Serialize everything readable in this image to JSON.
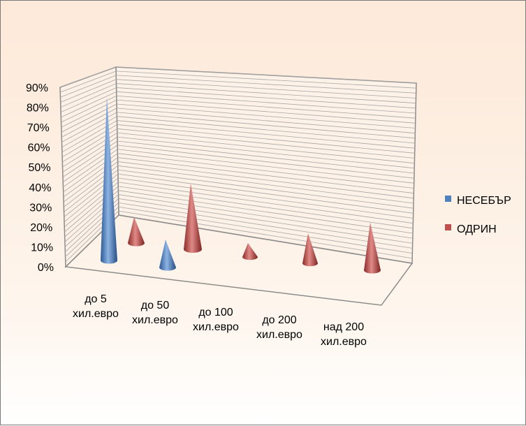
{
  "chart_data": {
    "type": "bar",
    "shape": "cone-3d",
    "title": "",
    "xlabel": "",
    "ylabel": "",
    "ylim": [
      0,
      90
    ],
    "yticks": [
      "0%",
      "10%",
      "20%",
      "30%",
      "40%",
      "50%",
      "60%",
      "70%",
      "80%",
      "90%"
    ],
    "grid": true,
    "legend_position": "right",
    "categories": [
      [
        "до 5",
        "хил.евро"
      ],
      [
        "до  50",
        "хил.евро"
      ],
      [
        "до 100",
        "хил.евро"
      ],
      [
        "до  200",
        "хил.евро"
      ],
      [
        "над  200",
        "хил.евро"
      ]
    ],
    "series": [
      {
        "name": "НЕСЕБЪР",
        "color": "#4f81bd",
        "values": [
          82,
          14,
          0,
          0,
          0
        ]
      },
      {
        "name": "ОДРИН",
        "color": "#c0504d",
        "values": [
          13,
          33,
          7,
          15,
          24
        ]
      }
    ]
  }
}
